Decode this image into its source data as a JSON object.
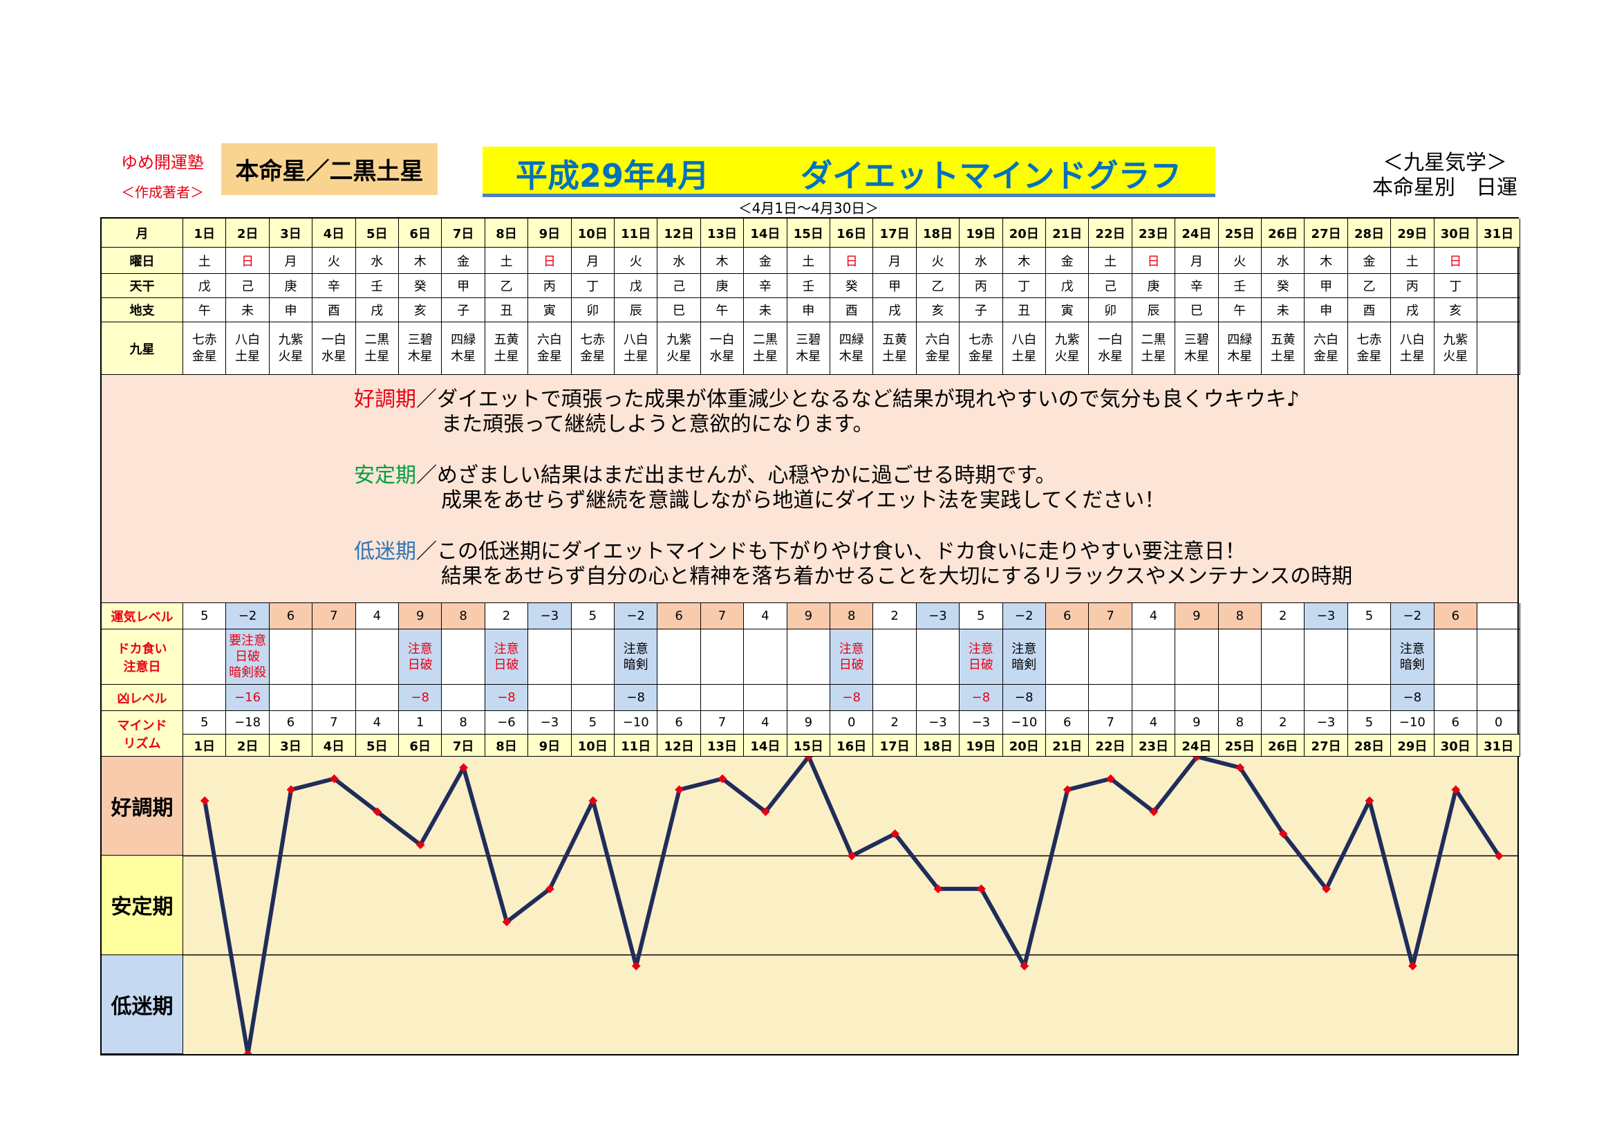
{
  "header": {
    "school": "ゆめ開運塾",
    "author": "＜作成著者＞",
    "honmei": "本命星／二黒土星",
    "title_month": "平成29年4月",
    "title_name": "ダイエットマインドグラフ",
    "range": "＜4月1日～4月30日＞",
    "brand_line1": "＜九星気学＞",
    "brand_line2": "本命星別　日運"
  },
  "row_labels": {
    "month": "月",
    "youbi": "曜日",
    "tenkan": "天干",
    "chishi": "地支",
    "kyusei": "九星",
    "unki": "運気レベル",
    "dokagui": "ドカ食い\n注意日",
    "kyo": "凶レベル",
    "mind": "マインド\nリズム"
  },
  "days": [
    "1日",
    "2日",
    "3日",
    "4日",
    "5日",
    "6日",
    "7日",
    "8日",
    "9日",
    "10日",
    "11日",
    "12日",
    "13日",
    "14日",
    "15日",
    "16日",
    "17日",
    "18日",
    "19日",
    "20日",
    "21日",
    "22日",
    "23日",
    "24日",
    "25日",
    "26日",
    "27日",
    "28日",
    "29日",
    "30日",
    "31日"
  ],
  "youbi": [
    "土",
    "日",
    "月",
    "火",
    "水",
    "木",
    "金",
    "土",
    "日",
    "月",
    "火",
    "水",
    "木",
    "金",
    "土",
    "日",
    "月",
    "火",
    "水",
    "木",
    "金",
    "土",
    "日",
    "月",
    "火",
    "水",
    "木",
    "金",
    "土",
    "日",
    ""
  ],
  "tenkan": [
    "戊",
    "己",
    "庚",
    "辛",
    "壬",
    "癸",
    "甲",
    "乙",
    "丙",
    "丁",
    "戊",
    "己",
    "庚",
    "辛",
    "壬",
    "癸",
    "甲",
    "乙",
    "丙",
    "丁",
    "戊",
    "己",
    "庚",
    "辛",
    "壬",
    "癸",
    "甲",
    "乙",
    "丙",
    "丁",
    ""
  ],
  "chishi": [
    "午",
    "未",
    "申",
    "酉",
    "戌",
    "亥",
    "子",
    "丑",
    "寅",
    "卯",
    "辰",
    "巳",
    "午",
    "未",
    "申",
    "酉",
    "戌",
    "亥",
    "子",
    "丑",
    "寅",
    "卯",
    "辰",
    "巳",
    "午",
    "未",
    "申",
    "酉",
    "戌",
    "亥",
    ""
  ],
  "kyusei": [
    [
      "七赤",
      "金星"
    ],
    [
      "八白",
      "土星"
    ],
    [
      "九紫",
      "火星"
    ],
    [
      "一白",
      "水星"
    ],
    [
      "二黒",
      "土星"
    ],
    [
      "三碧",
      "木星"
    ],
    [
      "四緑",
      "木星"
    ],
    [
      "五黄",
      "土星"
    ],
    [
      "六白",
      "金星"
    ],
    [
      "七赤",
      "金星"
    ],
    [
      "八白",
      "土星"
    ],
    [
      "九紫",
      "火星"
    ],
    [
      "一白",
      "水星"
    ],
    [
      "二黒",
      "土星"
    ],
    [
      "三碧",
      "木星"
    ],
    [
      "四緑",
      "木星"
    ],
    [
      "五黄",
      "土星"
    ],
    [
      "六白",
      "金星"
    ],
    [
      "七赤",
      "金星"
    ],
    [
      "八白",
      "土星"
    ],
    [
      "九紫",
      "火星"
    ],
    [
      "一白",
      "水星"
    ],
    [
      "二黒",
      "土星"
    ],
    [
      "三碧",
      "木星"
    ],
    [
      "四緑",
      "木星"
    ],
    [
      "五黄",
      "土星"
    ],
    [
      "六白",
      "金星"
    ],
    [
      "七赤",
      "金星"
    ],
    [
      "八白",
      "土星"
    ],
    [
      "九紫",
      "火星"
    ],
    [
      "",
      ""
    ]
  ],
  "description": {
    "good_label": "好調期",
    "good_line1": "／ダイエットで頑張った成果が体重減少となるなど結果が現れやすいので気分も良くウキウキ♪",
    "good_line2": "また頑張って継続しようと意欲的になります。",
    "stable_label": "安定期",
    "stable_line1": "／めざましい結果はまだ出ませんが、心穏やかに過ごせる時期です。",
    "stable_line2": "成果をあせらず継続を意識しながら地道にダイエット法を実践してください！",
    "low_label": "低迷期",
    "low_line1": "／この低迷期にダイエットマインドも下がりやけ食い、ドカ食いに走りやすい要注意日！",
    "low_line2": "結果をあせらず自分の心と精神を落ち着かせることを大切にするリラックスやメンテナンスの時期",
    "good_color": "#e60012",
    "stable_color": "#00a040",
    "low_color": "#2e75b6"
  },
  "unki": [
    "5",
    "−2",
    "6",
    "7",
    "4",
    "9",
    "8",
    "2",
    "−3",
    "5",
    "−2",
    "6",
    "7",
    "4",
    "9",
    "8",
    "2",
    "−3",
    "5",
    "−2",
    "6",
    "7",
    "4",
    "9",
    "8",
    "2",
    "−3",
    "5",
    "−2",
    "6",
    ""
  ],
  "dokagui": [
    "",
    "要注意\n日破\n暗剣殺",
    "",
    "",
    "",
    "注意\n日破",
    "",
    "注意\n日破",
    "",
    "",
    "注意\n暗剣",
    "",
    "",
    "",
    "",
    "注意\n日破",
    "",
    "",
    "注意\n日破",
    "注意\n暗剣",
    "",
    "",
    "",
    "",
    "",
    "",
    "",
    "",
    "注意\n暗剣",
    "",
    ""
  ],
  "kyo": [
    "",
    "−16",
    "",
    "",
    "",
    "−8",
    "",
    "−8",
    "",
    "",
    "−8",
    "",
    "",
    "",
    "",
    "−8",
    "",
    "",
    "−8",
    "−8",
    "",
    "",
    "",
    "",
    "",
    "",
    "",
    "",
    "−8",
    "",
    ""
  ],
  "mind_labels": [
    "5",
    "−18",
    "6",
    "7",
    "4",
    "1",
    "8",
    "−6",
    "−3",
    "5",
    "−10",
    "6",
    "7",
    "4",
    "9",
    "0",
    "2",
    "−3",
    "−3",
    "−10",
    "6",
    "7",
    "4",
    "9",
    "8",
    "2",
    "−3",
    "5",
    "−10",
    "6",
    "0"
  ],
  "zones": [
    "好調期",
    "安定期",
    "低迷期"
  ],
  "chart_data": {
    "type": "line",
    "categories": [
      "1日",
      "2日",
      "3日",
      "4日",
      "5日",
      "6日",
      "7日",
      "8日",
      "9日",
      "10日",
      "11日",
      "12日",
      "13日",
      "14日",
      "15日",
      "16日",
      "17日",
      "18日",
      "19日",
      "20日",
      "21日",
      "22日",
      "23日",
      "24日",
      "25日",
      "26日",
      "27日",
      "28日",
      "29日",
      "30日",
      "31日"
    ],
    "values": [
      5,
      -18,
      6,
      7,
      4,
      1,
      8,
      -6,
      -3,
      5,
      -10,
      6,
      7,
      4,
      9,
      0,
      2,
      -3,
      -3,
      -10,
      6,
      7,
      4,
      9,
      8,
      2,
      -3,
      5,
      -10,
      6,
      0
    ],
    "ylim": [
      -18,
      9
    ],
    "bands": [
      {
        "name": "好調期",
        "from": 0,
        "to": 9,
        "color": "#fbefc6"
      },
      {
        "name": "安定期",
        "from": -9,
        "to": 0,
        "color": "#fbefc6"
      },
      {
        "name": "低迷期",
        "from": -18,
        "to": -9,
        "color": "#fbefc6"
      }
    ],
    "line_color": "#1f2d5a",
    "marker_color": "#e60012",
    "grid": true
  }
}
